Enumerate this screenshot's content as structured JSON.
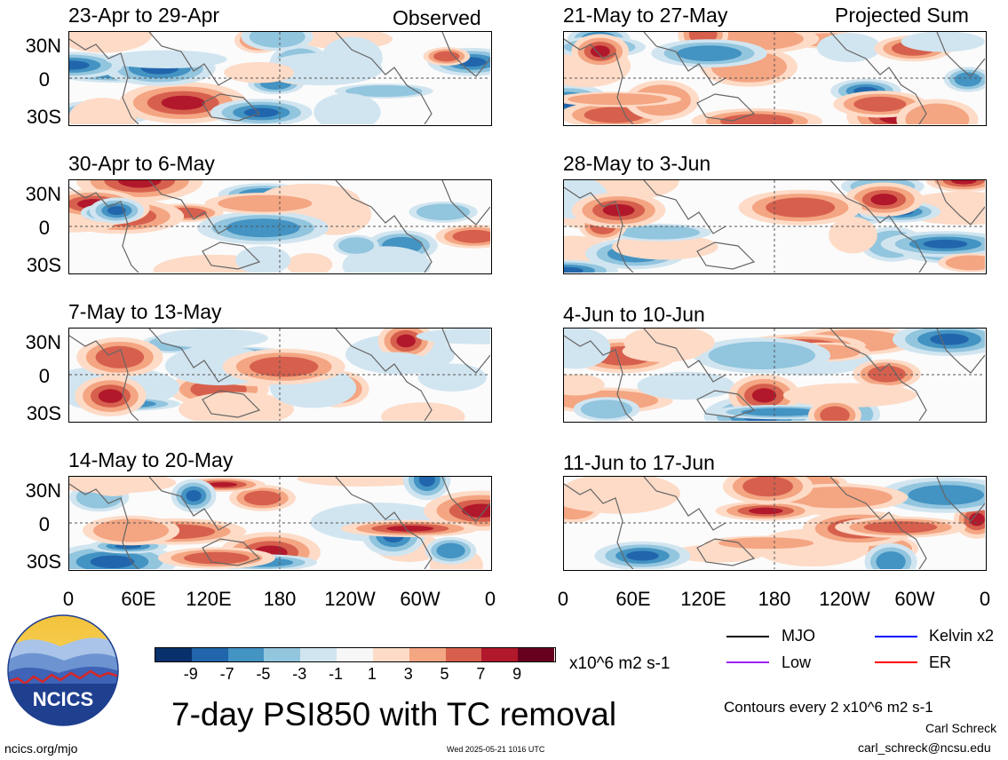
{
  "panels": [
    {
      "title": "23-Apr to 29-Apr",
      "corner": "Observed"
    },
    {
      "title": "21-May to 27-May",
      "corner": "Projected Sum"
    },
    {
      "title": "30-Apr to 6-May",
      "corner": ""
    },
    {
      "title": "28-May to 3-Jun",
      "corner": ""
    },
    {
      "title": "7-May to 13-May",
      "corner": ""
    },
    {
      "title": "4-Jun to 10-Jun",
      "corner": ""
    },
    {
      "title": "14-May to 20-May",
      "corner": ""
    },
    {
      "title": "11-Jun to 17-Jun",
      "corner": ""
    }
  ],
  "axes": {
    "y_ticks": [
      "30N",
      "0",
      "30S"
    ],
    "x_ticks": [
      "0",
      "60E",
      "120E",
      "180",
      "120W",
      "60W",
      "0"
    ]
  },
  "colorbar": {
    "colors": [
      "#08306b",
      "#2166ac",
      "#4393c3",
      "#92c5de",
      "#d1e5f0",
      "#f7f7f7",
      "#fddbc7",
      "#f4a582",
      "#d6604d",
      "#b2182b",
      "#67001f"
    ],
    "ticks": [
      "-9",
      "-7",
      "-5",
      "-3",
      "-1",
      "1",
      "3",
      "5",
      "7",
      "9"
    ],
    "units": "x10^6 m2 s-1"
  },
  "legend": {
    "items": [
      {
        "label": "MJO",
        "color": "#000000"
      },
      {
        "label": "Kelvin x2",
        "color": "#0000ff"
      },
      {
        "label": "Low",
        "color": "#a020f0"
      },
      {
        "label": "ER",
        "color": "#ff0000"
      }
    ],
    "contours_note": "Contours every 2 x10^6 m2 s-1"
  },
  "footer": {
    "main_title": "7-day PSI850 with TC removal",
    "url": "ncics.org/mjo",
    "timestamp": "Wed 2025-05-21 1016 UTC",
    "author": "Carl Schreck",
    "email": "carl_schreck@ncsu.edu",
    "logo_text": "NCICS"
  }
}
